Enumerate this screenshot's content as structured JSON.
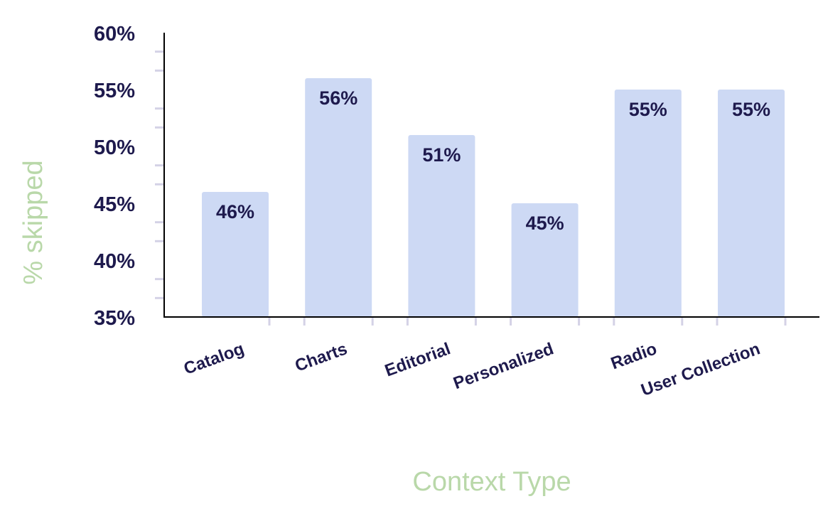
{
  "chart_data": {
    "type": "bar",
    "xlabel": "Context Type",
    "ylabel": "% skipped",
    "categories": [
      "Catalog",
      "Charts",
      "Editorial",
      "Personalized",
      "Radio",
      "User Collection"
    ],
    "values": [
      46.0,
      56.0,
      51.0,
      45.0,
      55.0,
      55.0
    ],
    "data_labels": [
      "46%",
      "56%",
      "51%",
      "45%",
      "55%",
      "55%"
    ],
    "ylim": [
      35,
      60
    ],
    "yticks": [
      35,
      40,
      45,
      50,
      55,
      60
    ],
    "ytick_labels": [
      "35%",
      "40%",
      "45%",
      "50%",
      "55%",
      "60%"
    ],
    "grid": false,
    "colors": {
      "bar": "#cdd9f4",
      "text": "#1e1a4d",
      "axis_title": "#b9d8a9",
      "minor_tick": "#d4d2e6",
      "axis": "#000000"
    }
  }
}
